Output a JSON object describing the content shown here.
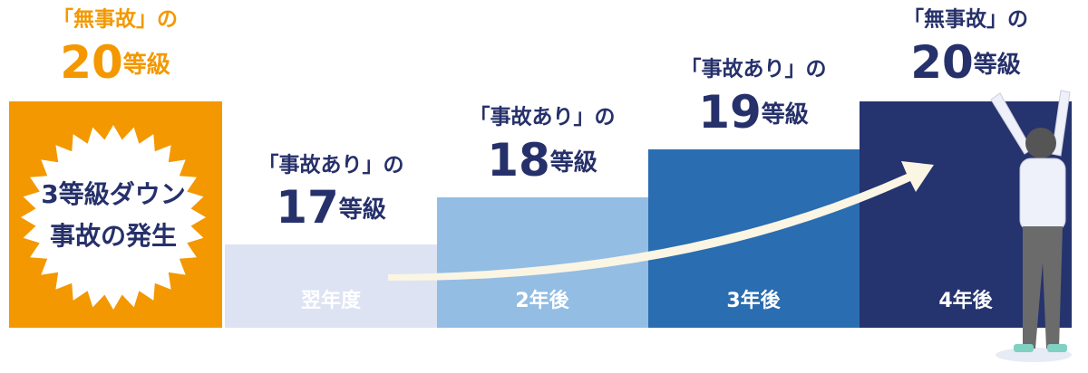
{
  "columns": [
    {
      "prefix": "「無事故」の",
      "grade": "20",
      "unit": "等級",
      "badge": [
        "3等級ダウン",
        "事故の発生"
      ]
    },
    {
      "prefix": "「事故あり」の",
      "grade": "17",
      "unit": "等級",
      "period": "翌年度"
    },
    {
      "prefix": "「事故あり」の",
      "grade": "18",
      "unit": "等級",
      "period": "2年後"
    },
    {
      "prefix": "「事故あり」の",
      "grade": "19",
      "unit": "等級",
      "period": "3年後"
    },
    {
      "prefix": "「無事故」の",
      "grade": "20",
      "unit": "等級",
      "period": "4年後"
    }
  ]
}
